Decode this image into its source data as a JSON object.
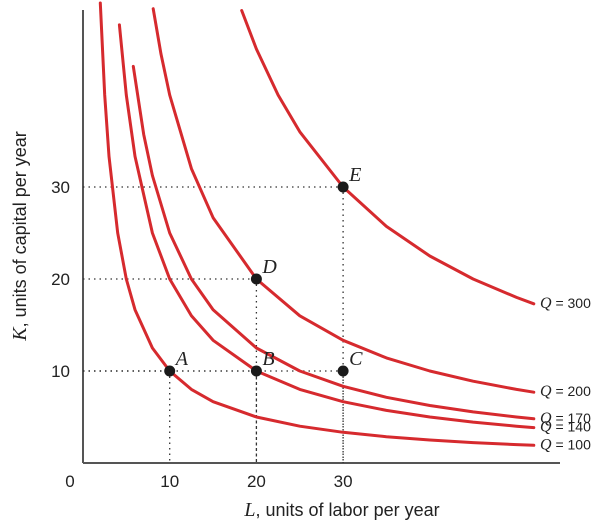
{
  "chart_data": {
    "type": "line",
    "xlabel_var": "L",
    "xlabel_rest": ", units of labor per year",
    "ylabel_var": "K",
    "ylabel_rest": ", units of capital per year",
    "origin_label": "0",
    "xticks": [
      10,
      20,
      30
    ],
    "yticks": [
      10,
      20,
      30
    ],
    "xlim": [
      0,
      53
    ],
    "ylim": [
      0,
      45
    ],
    "grid": false,
    "curve_color": "#d62a2e",
    "series": [
      {
        "name": "Q = 100",
        "qvar": "Q",
        "qval": "= 100",
        "k_times_l": 100,
        "x": [
          2.0,
          2.5,
          3,
          4,
          5,
          6,
          8,
          10,
          12.5,
          15,
          20,
          25,
          30,
          35,
          40,
          45,
          50,
          52
        ]
      },
      {
        "name": "Q = 140",
        "qvar": "Q",
        "qval": "= 140",
        "k_times_l": 200,
        "x": [
          4.2,
          5,
          6,
          8,
          10,
          12.5,
          15,
          20,
          25,
          30,
          35,
          40,
          45,
          50,
          52
        ]
      },
      {
        "name": "Q = 170",
        "qvar": "Q",
        "qval": "= 170",
        "k_times_l": 250,
        "x": [
          5.8,
          7,
          8,
          10,
          12.5,
          15,
          20,
          25,
          30,
          35,
          40,
          45,
          50,
          52
        ]
      },
      {
        "name": "Q = 200",
        "qvar": "Q",
        "qval": "= 200",
        "k_times_l": 400,
        "x": [
          8.1,
          9,
          10,
          12.5,
          15,
          20,
          25,
          30,
          35,
          40,
          45,
          50,
          52
        ]
      },
      {
        "name": "Q = 300",
        "qvar": "Q",
        "qval": "= 300",
        "k_times_l": 900,
        "x": [
          18.3,
          20,
          22.5,
          25,
          30,
          35,
          40,
          45,
          50,
          52
        ]
      }
    ],
    "points": [
      {
        "label": "A",
        "x": 10,
        "y": 10
      },
      {
        "label": "B",
        "x": 20,
        "y": 10
      },
      {
        "label": "C",
        "x": 30,
        "y": 10
      },
      {
        "label": "D",
        "x": 20,
        "y": 20
      },
      {
        "label": "E",
        "x": 30,
        "y": 30
      }
    ]
  }
}
